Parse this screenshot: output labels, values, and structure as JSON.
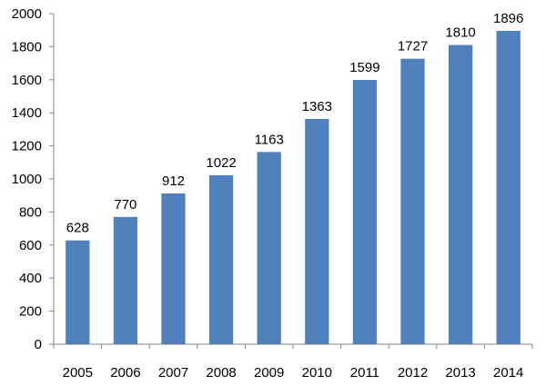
{
  "chart_data": {
    "type": "bar",
    "title": "",
    "xlabel": "",
    "ylabel": "",
    "categories": [
      "2005",
      "2006",
      "2007",
      "2008",
      "2009",
      "2010",
      "2011",
      "2012",
      "2013",
      "2014"
    ],
    "values": [
      628,
      770,
      912,
      1022,
      1163,
      1363,
      1599,
      1727,
      1810,
      1896
    ],
    "ylim": [
      0,
      2000
    ],
    "yticks": [
      0,
      200,
      400,
      600,
      800,
      1000,
      1200,
      1400,
      1600,
      1800,
      2000
    ],
    "grid": false,
    "legend": "none",
    "show_data_labels": true,
    "colors": {
      "bar": "#4f81bd",
      "axis": "#868686",
      "text": "#000000",
      "background": "#ffffff"
    }
  }
}
